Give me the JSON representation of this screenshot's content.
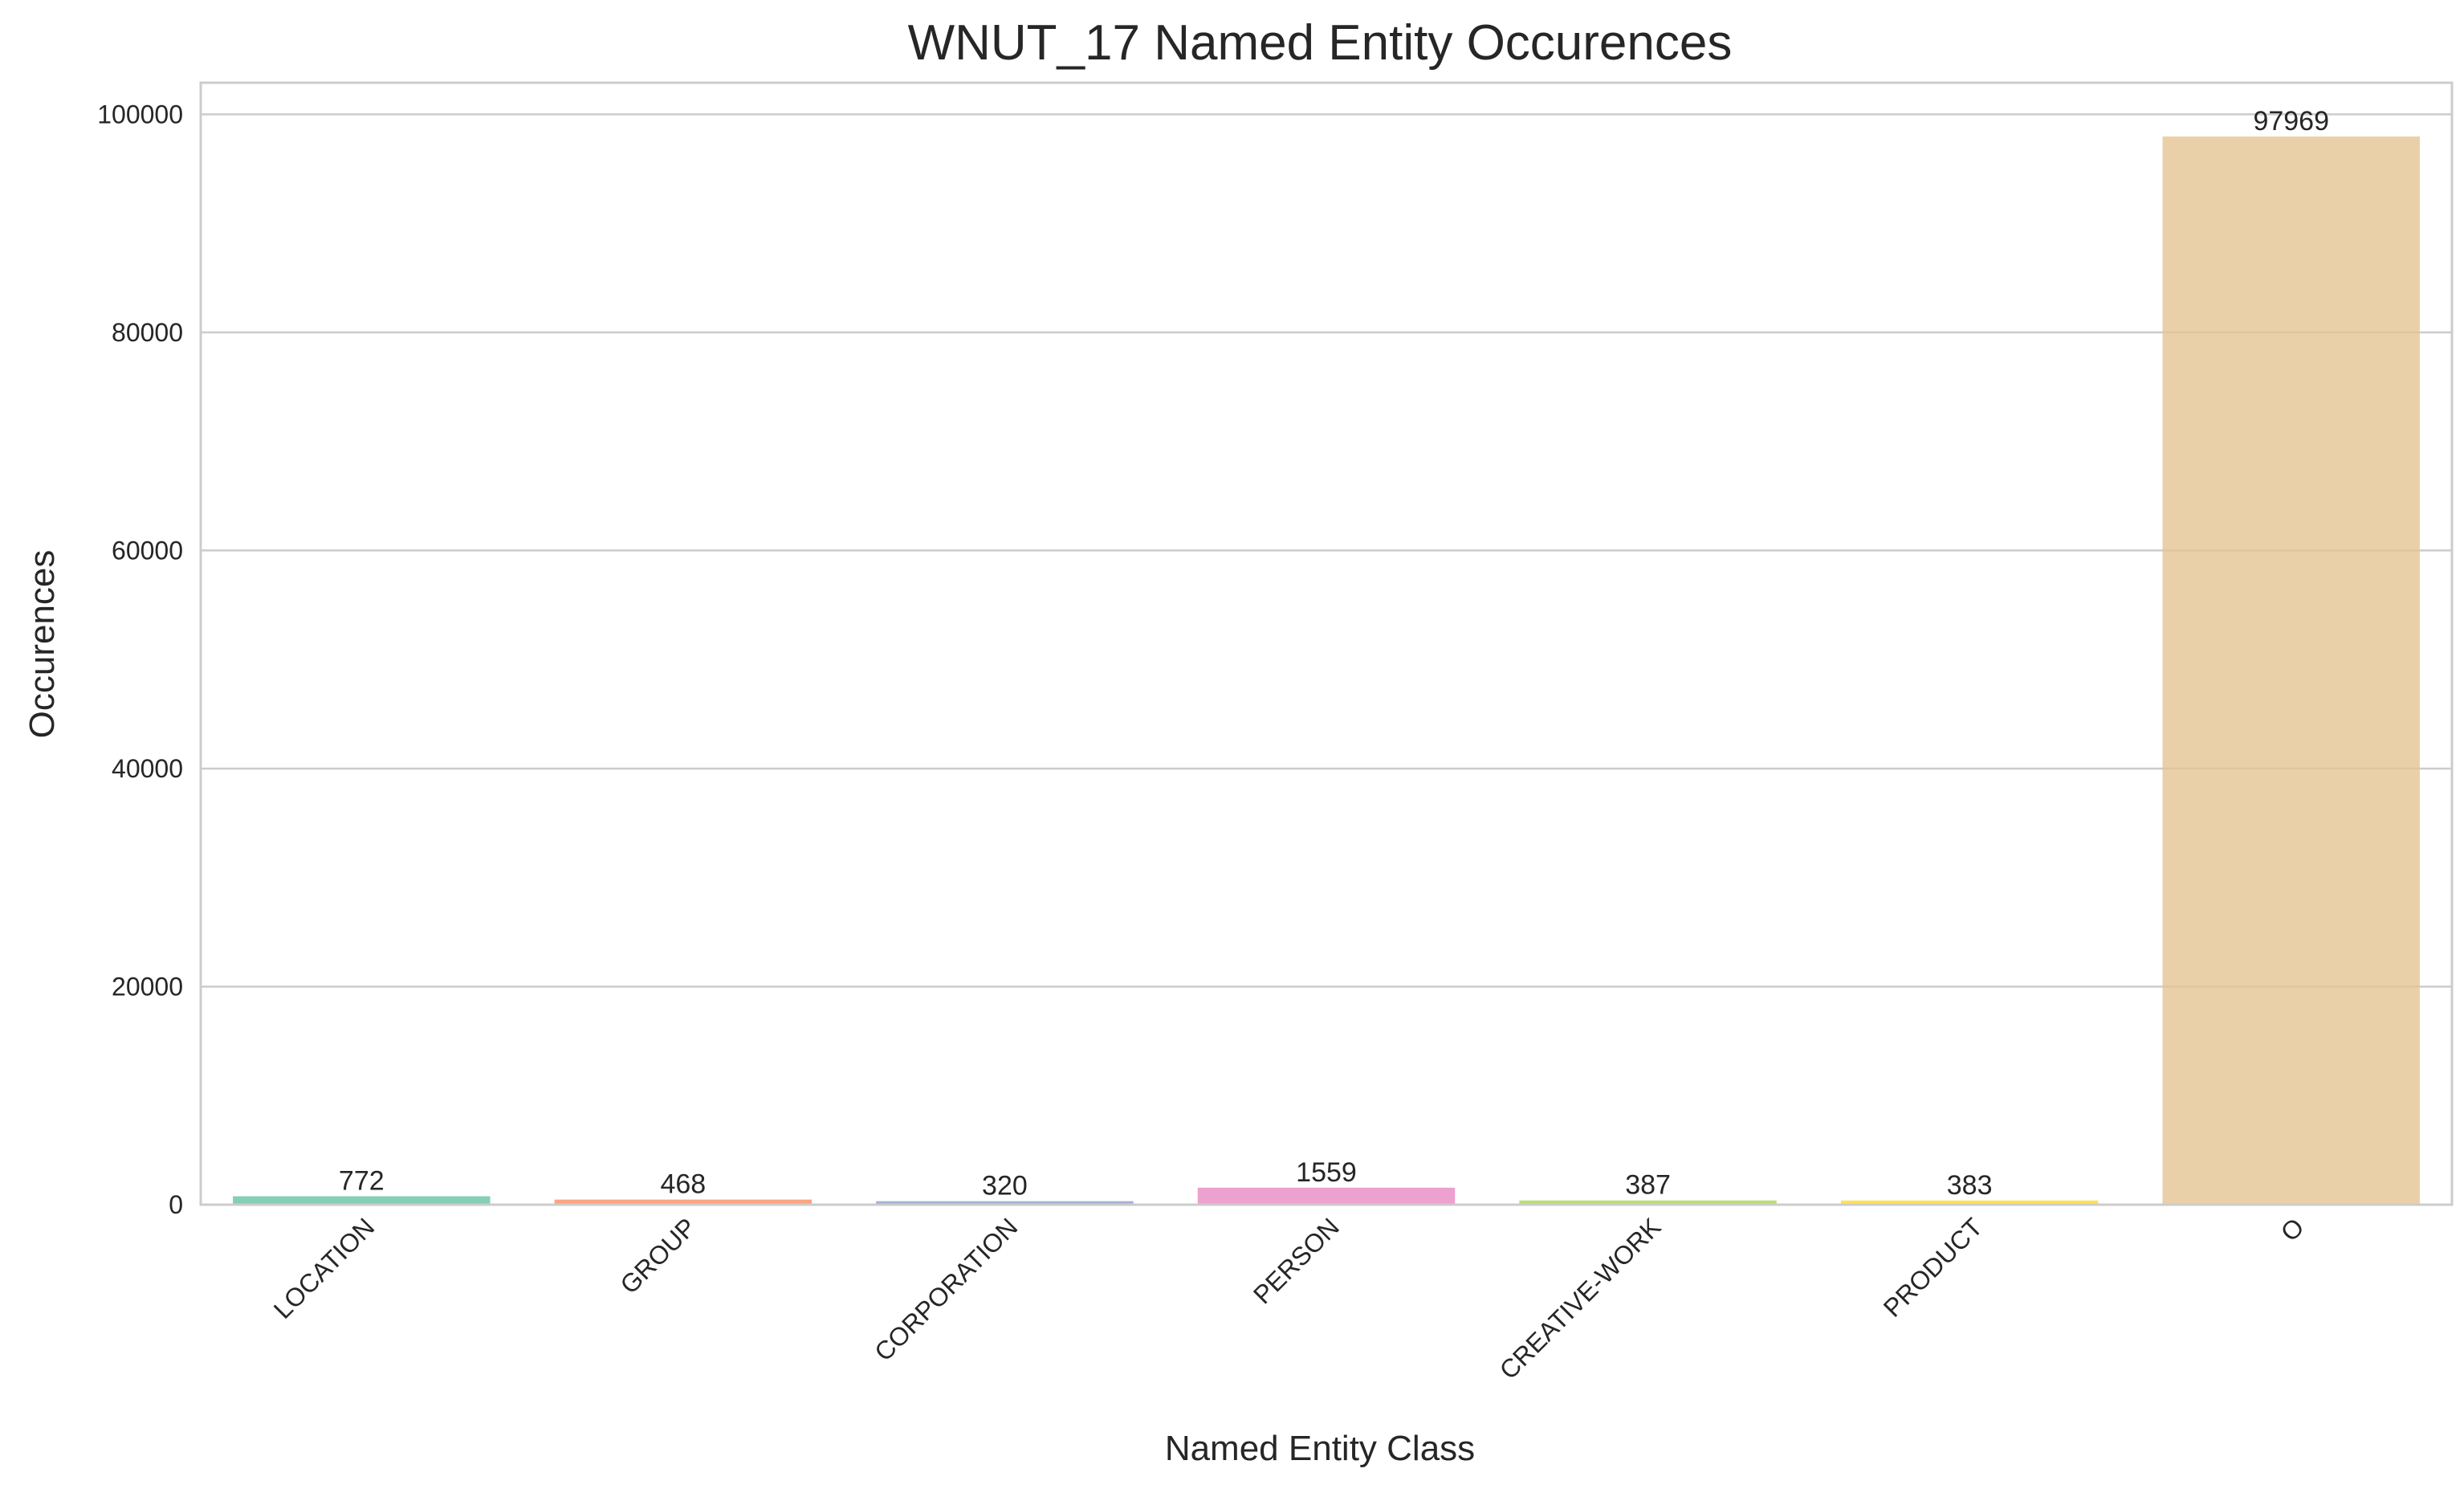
{
  "chart_data": {
    "type": "bar",
    "title": "WNUT_17 Named Entity Occurences",
    "xlabel": "Named Entity Class",
    "ylabel": "Occurences",
    "categories": [
      "LOCATION",
      "GROUP",
      "CORPORATION",
      "PERSON",
      "CREATIVE-WORK",
      "PRODUCT",
      "O"
    ],
    "values": [
      772,
      468,
      320,
      1559,
      387,
      383,
      97969
    ],
    "data_labels": [
      "772",
      "468",
      "320",
      "1559",
      "387",
      "383",
      "97969"
    ],
    "colors": [
      "#66c2a5",
      "#fc8d62",
      "#8da0cb",
      "#e78ac3",
      "#a6d854",
      "#ffd92f",
      "#e5c494"
    ],
    "bar_alpha": 0.8,
    "ylim": [
      0,
      102900
    ],
    "yticks": [
      0,
      20000,
      40000,
      60000,
      80000,
      100000
    ],
    "ytick_labels": [
      "0",
      "20000",
      "40000",
      "60000",
      "80000",
      "100000"
    ],
    "grid": "horizontal",
    "legend": "none"
  }
}
